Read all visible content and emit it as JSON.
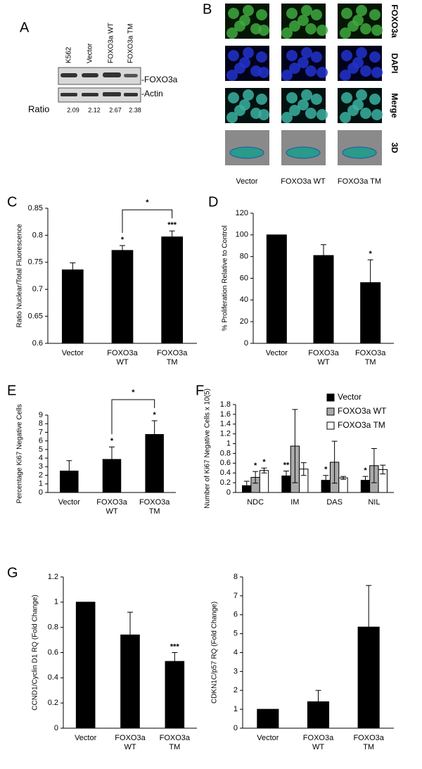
{
  "blot": {
    "panel": "A",
    "lanes": [
      "K562",
      "Vector",
      "FOXO3a WT",
      "FOXO3a TM"
    ],
    "bands": [
      "-FOXO3a",
      "-Actin"
    ],
    "ratio_label": "Ratio",
    "ratios": [
      2.09,
      2.12,
      2.67,
      2.38
    ]
  },
  "images": {
    "panel": "B",
    "rows": [
      "FOXO3a",
      "DAPI",
      "Merge",
      "3D"
    ],
    "row_colors": [
      "#33bb33",
      "#2299cc",
      "#000000",
      "#000000"
    ],
    "columns": [
      "Vector",
      "FOXO3a WT",
      "FOXO3a TM"
    ]
  },
  "chart_data": [
    {
      "type": "bar",
      "panel": "C",
      "y_label": "Ratio Nuclear/Total Fluorescence",
      "categories": [
        "Vector",
        "FOXO3a WT",
        "FOXO3a TM"
      ],
      "values": [
        0.736,
        0.772,
        0.797
      ],
      "errors": [
        0.013,
        0.009,
        0.011
      ],
      "significance": [
        null,
        "*",
        "***"
      ],
      "bracket_label": "*",
      "color": "#000000",
      "ylim": [
        0.6,
        0.85
      ],
      "yticks": [
        0.6,
        0.65,
        0.7,
        0.75,
        0.8,
        0.85
      ]
    },
    {
      "type": "bar",
      "panel": "D",
      "y_label": "% Proliferation Relative to Control",
      "categories": [
        "Vector",
        "FOXO3a WT",
        "FOXO3a TM"
      ],
      "values": [
        100,
        81,
        56
      ],
      "errors": [
        null,
        10,
        21
      ],
      "significance": [
        null,
        null,
        "*"
      ],
      "color": "#000000",
      "ylim": [
        0,
        120
      ],
      "yticks": [
        0,
        20,
        40,
        60,
        80,
        100,
        120
      ]
    },
    {
      "type": "bar",
      "panel": "E",
      "y_label": "Percentage Ki67 Negative Cells",
      "categories": [
        "Vector",
        "FOXO3a WT",
        "FOXO3a TM"
      ],
      "values": [
        2.5,
        3.85,
        6.75
      ],
      "errors": [
        1.2,
        1.45,
        1.6
      ],
      "significance": [
        null,
        "*",
        "*"
      ],
      "bracket_label": "*",
      "color": "#000000",
      "ylim": [
        0,
        9
      ],
      "yticks": [
        0,
        1,
        2,
        3,
        4,
        5,
        6,
        7,
        8,
        9
      ]
    },
    {
      "type": "bar",
      "panel": "F",
      "y_label": "Number of Ki67 Negative Cells x 10(5)",
      "categories": [
        "NDC",
        "IM",
        "DAS",
        "NIL"
      ],
      "series": [
        {
          "name": "Vector",
          "color": "#000000",
          "values": [
            0.14,
            0.34,
            0.25,
            0.25
          ],
          "errors": [
            0.09,
            0.1,
            0.1,
            0.08
          ],
          "significance": [
            null,
            "**",
            "*",
            "*"
          ]
        },
        {
          "name": "FOXO3a WT",
          "color": "#aaaaaa",
          "values": [
            0.31,
            0.95,
            0.62,
            0.55
          ],
          "errors": [
            0.12,
            0.75,
            0.43,
            0.35
          ],
          "significance": [
            "*",
            null,
            null,
            null
          ]
        },
        {
          "name": "FOXO3a TM",
          "color": "#ffffff",
          "values": [
            0.45,
            0.48,
            0.3,
            0.47
          ],
          "errors": [
            0.05,
            0.13,
            0.03,
            0.09
          ],
          "significance": [
            "*",
            null,
            null,
            null
          ]
        }
      ],
      "ylim": [
        0,
        1.8
      ],
      "yticks": [
        0,
        0.2,
        0.4,
        0.6,
        0.8,
        1,
        1.2,
        1.4,
        1.6,
        1.8
      ]
    },
    {
      "type": "bar",
      "panel": "G",
      "y_label": "CCND1/Cyclin D1 RQ (Fold Change)",
      "categories": [
        "Vector",
        "FOXO3a WT",
        "FOXO3a TM"
      ],
      "values": [
        1,
        0.74,
        0.53
      ],
      "errors": [
        null,
        0.18,
        0.07
      ],
      "significance": [
        null,
        null,
        "***"
      ],
      "color": "#000000",
      "ylim": [
        0,
        1.2
      ],
      "yticks": [
        0,
        0.2,
        0.4,
        0.6,
        0.8,
        1,
        1.2
      ]
    },
    {
      "type": "bar",
      "y_label": "CDKN1C/p57 RQ (Fold Change)",
      "categories": [
        "Vector",
        "FOXO3a WT",
        "FOXO3a TM"
      ],
      "values": [
        1,
        1.4,
        5.35
      ],
      "errors": [
        null,
        0.6,
        2.2
      ],
      "color": "#000000",
      "ylim": [
        0,
        8
      ],
      "yticks": [
        0,
        1,
        2,
        3,
        4,
        5,
        6,
        7,
        8
      ]
    }
  ]
}
